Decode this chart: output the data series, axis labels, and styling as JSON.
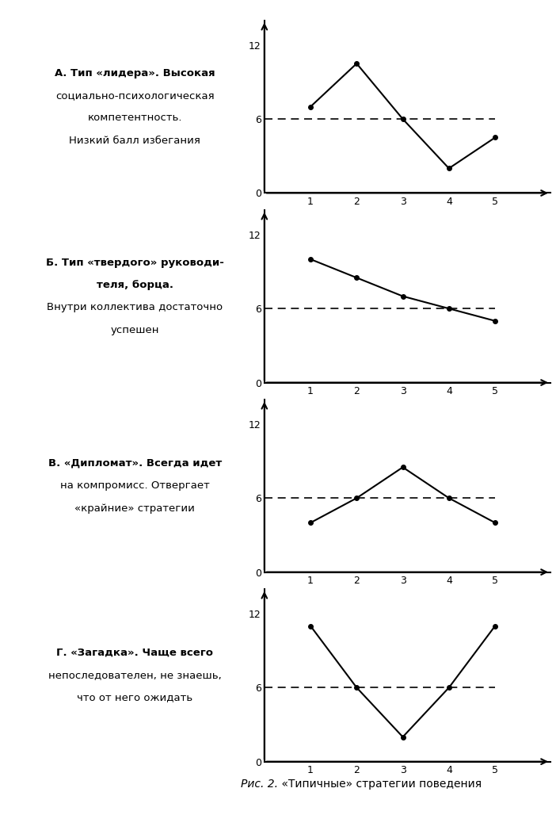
{
  "charts": [
    {
      "label_lines": [
        {
          "text": "А. Тип «лидера». Высокая",
          "bold": true
        },
        {
          "text": "социально-психологическая",
          "bold": false
        },
        {
          "text": "компетентность.",
          "bold": false
        },
        {
          "text": "Низкий балл избегания",
          "bold": false
        }
      ],
      "x": [
        1,
        2,
        3,
        4,
        5
      ],
      "y": [
        7,
        10.5,
        6,
        2,
        4.5
      ],
      "dashed_y": 6
    },
    {
      "label_lines": [
        {
          "text": "Б. Тип «твердого» руководи-",
          "bold": true
        },
        {
          "text": "теля, борца.",
          "bold": true
        },
        {
          "text": "Внутри коллектива достаточно",
          "bold": false
        },
        {
          "text": "успешен",
          "bold": false
        }
      ],
      "x": [
        1,
        2,
        3,
        4,
        5
      ],
      "y": [
        10,
        8.5,
        7,
        6,
        5
      ],
      "dashed_y": 6
    },
    {
      "label_lines": [
        {
          "text": "В. «Дипломат». Всегда идет",
          "bold": true
        },
        {
          "text": "на компромисс. Отвергает",
          "bold": false
        },
        {
          "text": "«крайние» стратегии",
          "bold": false
        }
      ],
      "x": [
        1,
        2,
        3,
        4,
        5
      ],
      "y": [
        4,
        6,
        8.5,
        6,
        4
      ],
      "dashed_y": 6
    },
    {
      "label_lines": [
        {
          "text": "Г. «Загадка». Чаще всего",
          "bold": true
        },
        {
          "text": "непоследователен, не знаешь,",
          "bold": false
        },
        {
          "text": "что от него ожидать",
          "bold": false
        }
      ],
      "x": [
        1,
        2,
        3,
        4,
        5
      ],
      "y": [
        11,
        6,
        2,
        6,
        11
      ],
      "dashed_y": 6
    }
  ],
  "caption_italic": "Рис. 2.",
  "caption_normal": " «Типичные» стратегии поведения",
  "ylim": [
    0,
    14
  ],
  "yticks": [
    0,
    6,
    12
  ],
  "xlim": [
    0,
    6.2
  ],
  "xticks": [
    1,
    2,
    3,
    4,
    5
  ],
  "bg_color": "#ffffff",
  "line_color": "#000000",
  "dashed_color": "#000000",
  "marker": "o",
  "marker_size": 4,
  "line_width": 1.5
}
